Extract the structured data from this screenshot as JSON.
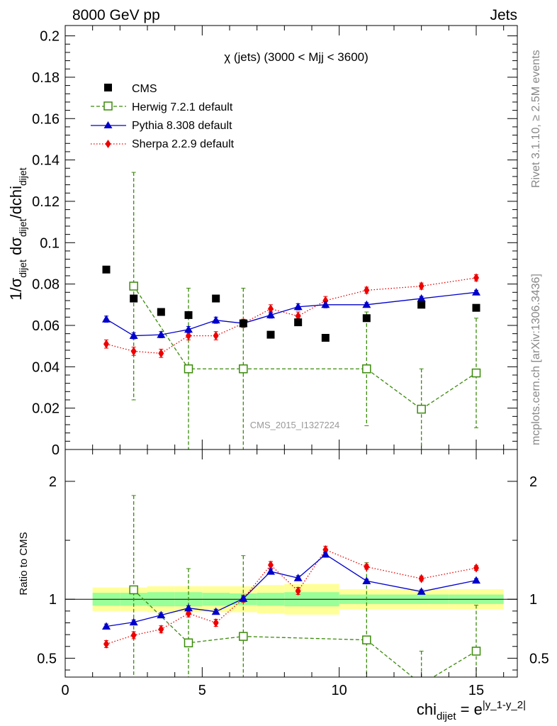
{
  "header": {
    "left": "8000 GeV pp",
    "right": "Jets"
  },
  "side_labels": {
    "rivet": "Rivet 3.1.10, ≥ 2.5M events",
    "mcplots": "mcplots.cern.ch [arXiv:1306.3436]"
  },
  "watermark": "CMS_2015_I1327224",
  "colors": {
    "cms": "#000000",
    "herwig": "#3a8a0a",
    "pythia": "#0000cc",
    "sherpa": "#ee0000",
    "band_outer": "#ffff99",
    "band_inner": "#99ff99"
  },
  "chart_data": [
    {
      "type": "scatter",
      "title": "χ (jets) (3000 < Mjj < 3600)",
      "ylabel": {
        "main": "1/σ",
        "sub1": "dijet",
        "mid": " dσ",
        "sub2": "dijet",
        "slash": "/dchi",
        "sub3": "dijet"
      },
      "xlim": [
        0,
        16.5
      ],
      "ylim": [
        0,
        0.205
      ],
      "yticks": [
        "0",
        "0.02",
        "0.04",
        "0.06",
        "0.08",
        "0.1",
        "0.12",
        "0.14",
        "0.16",
        "0.18",
        "0.2"
      ],
      "legend_position": "top-left",
      "series": [
        {
          "name": "CMS",
          "x": [
            1.5,
            2.5,
            3.5,
            4.5,
            5.5,
            6.5,
            7.5,
            8.5,
            9.5,
            11,
            13,
            15
          ],
          "y": [
            0.087,
            0.073,
            0.0665,
            0.065,
            0.073,
            0.061,
            0.0555,
            0.0615,
            0.054,
            0.0635,
            0.07,
            0.0685
          ]
        },
        {
          "name": "Herwig 7.2.1 default",
          "x": [
            2.5,
            4.5,
            6.5,
            11,
            13,
            15
          ],
          "y": [
            0.079,
            0.039,
            0.039,
            0.039,
            0.0195,
            0.037
          ],
          "err": [
            0.055,
            0.039,
            0.039,
            0.0275,
            0.0195,
            0.0265
          ],
          "xerr": [
            0.5,
            0.5,
            0.5,
            1,
            1,
            1
          ]
        },
        {
          "name": "Pythia 8.308 default",
          "x": [
            1.5,
            2.5,
            3.5,
            4.5,
            5.5,
            6.5,
            7.5,
            8.5,
            9.5,
            11,
            13,
            15
          ],
          "y": [
            0.063,
            0.055,
            0.0555,
            0.058,
            0.0625,
            0.061,
            0.065,
            0.069,
            0.07,
            0.07,
            0.073,
            0.076
          ],
          "err": [
            0.0015,
            0.0015,
            0.0015,
            0.0015,
            0.0015,
            0.0015,
            0.0015,
            0.0015,
            0.0015,
            0.001,
            0.001,
            0.001
          ]
        },
        {
          "name": "Sherpa 2.2.9 default",
          "x": [
            1.5,
            2.5,
            3.5,
            4.5,
            5.5,
            6.5,
            7.5,
            8.5,
            9.5,
            11,
            13,
            15
          ],
          "y": [
            0.051,
            0.0475,
            0.0465,
            0.055,
            0.055,
            0.061,
            0.068,
            0.0645,
            0.072,
            0.077,
            0.079,
            0.083
          ],
          "err": [
            0.002,
            0.002,
            0.002,
            0.002,
            0.002,
            0.002,
            0.002,
            0.002,
            0.002,
            0.0015,
            0.0015,
            0.0015
          ]
        }
      ]
    },
    {
      "type": "line",
      "ylabel": "Ratio to CMS",
      "xlabel": {
        "main": "chi",
        "sub": "dijet",
        "eq": " = e",
        "sup": "|y_1-y_2|"
      },
      "xlim": [
        0,
        16.5
      ],
      "ylim": [
        0.34,
        2.27
      ],
      "xticks": [
        "0",
        "5",
        "10",
        "15"
      ],
      "yticks": [
        "0.5",
        "1",
        "2"
      ],
      "band": {
        "x_edges": [
          1,
          2,
          3,
          4,
          5,
          6,
          7,
          8,
          9,
          10,
          12,
          14,
          16
        ],
        "inner_half": [
          0.055,
          0.055,
          0.06,
          0.06,
          0.055,
          0.05,
          0.055,
          0.06,
          0.06,
          0.04,
          0.04,
          0.04
        ],
        "outer_half": [
          0.1,
          0.1,
          0.11,
          0.11,
          0.11,
          0.11,
          0.12,
          0.13,
          0.13,
          0.085,
          0.085,
          0.085
        ]
      },
      "series": [
        {
          "name": "Herwig 7.2.1 default",
          "x": [
            2.5,
            4.5,
            6.5,
            11,
            13,
            15
          ],
          "y": [
            1.08,
            0.63,
            0.685,
            0.655,
            0.28,
            0.56
          ],
          "err": [
            0.8,
            0.63,
            0.685,
            0.655,
            0.28,
            0.39
          ]
        },
        {
          "name": "Pythia 8.308 default",
          "x": [
            1.5,
            2.5,
            3.5,
            4.5,
            5.5,
            6.5,
            7.5,
            8.5,
            9.5,
            11,
            13,
            15
          ],
          "y": [
            0.77,
            0.805,
            0.865,
            0.925,
            0.895,
            1.005,
            1.235,
            1.18,
            1.38,
            1.155,
            1.065,
            1.16
          ],
          "err": [
            0.02,
            0.02,
            0.02,
            0.02,
            0.02,
            0.02,
            0.02,
            0.02,
            0.02,
            0.015,
            0.015,
            0.015
          ]
        },
        {
          "name": "Sherpa 2.2.9 default",
          "x": [
            1.5,
            2.5,
            3.5,
            4.5,
            5.5,
            6.5,
            7.5,
            8.5,
            9.5,
            11,
            13,
            15
          ],
          "y": [
            0.62,
            0.695,
            0.745,
            0.88,
            0.8,
            1.005,
            1.29,
            1.07,
            1.42,
            1.275,
            1.175,
            1.265
          ],
          "err": [
            0.03,
            0.03,
            0.03,
            0.03,
            0.03,
            0.03,
            0.03,
            0.03,
            0.03,
            0.02,
            0.02,
            0.02
          ]
        }
      ]
    }
  ]
}
